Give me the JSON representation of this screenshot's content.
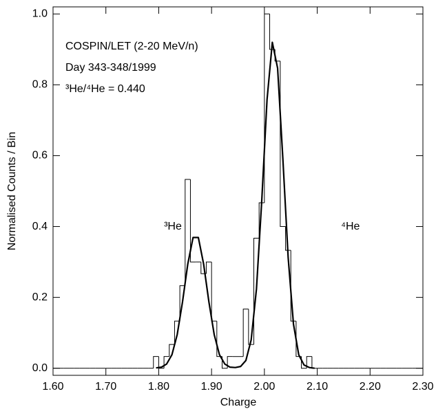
{
  "chart_data": {
    "type": "histogram",
    "xlabel": "Charge",
    "ylabel": "Normalised Counts / Bin",
    "annotations": [
      "COSPIN/LET (2-20 MeV/n)",
      "Day 343-348/1999",
      "³He/⁴He = 0.440"
    ],
    "peak_labels": [
      {
        "text": "³He",
        "x": 1.81,
        "y": 0.4
      },
      {
        "text": "⁴He",
        "x": 2.145,
        "y": 0.4
      }
    ],
    "color": "#000000",
    "bins": [
      1.6,
      1.61,
      1.62,
      1.63,
      1.64,
      1.65,
      1.66,
      1.67,
      1.68,
      1.69,
      1.7,
      1.71,
      1.72,
      1.73,
      1.74,
      1.75,
      1.76,
      1.77,
      1.78,
      1.79,
      1.8,
      1.81,
      1.82,
      1.83,
      1.84,
      1.85,
      1.86,
      1.87,
      1.88,
      1.89,
      1.9,
      1.91,
      1.92,
      1.93,
      1.94,
      1.95,
      1.96,
      1.97,
      1.98,
      1.99,
      2.0,
      2.01,
      2.02,
      2.03,
      2.04,
      2.05,
      2.06,
      2.07,
      2.08,
      2.09,
      2.1,
      2.11,
      2.12,
      2.13,
      2.14,
      2.15,
      2.16,
      2.17,
      2.18,
      2.19,
      2.2,
      2.21,
      2.22,
      2.23,
      2.24,
      2.25,
      2.26,
      2.27,
      2.28,
      2.29,
      2.3
    ],
    "values": [
      0,
      0,
      0,
      0,
      0,
      0,
      0,
      0,
      0,
      0,
      0,
      0,
      0,
      0,
      0,
      0,
      0,
      0,
      0,
      0.033,
      0,
      0.033,
      0.067,
      0.133,
      0.233,
      0.533,
      0.3,
      0.3,
      0.267,
      0.3,
      0.133,
      0.033,
      0,
      0.033,
      0.033,
      0.033,
      0.167,
      0.067,
      0.367,
      0.467,
      1.0,
      0.9,
      0.867,
      0.4,
      0.333,
      0.133,
      0.033,
      0,
      0.033,
      0,
      0,
      0,
      0,
      0,
      0,
      0,
      0,
      0,
      0,
      0,
      0,
      0,
      0,
      0,
      0,
      0,
      0,
      0,
      0,
      0
    ],
    "fit": {
      "type": "line",
      "color": "#000000",
      "x": [
        1.795,
        1.805,
        1.815,
        1.825,
        1.835,
        1.845,
        1.855,
        1.865,
        1.875,
        1.885,
        1.895,
        1.905,
        1.915,
        1.925,
        1.935,
        1.945,
        1.955,
        1.965,
        1.975,
        1.985,
        1.995,
        2.005,
        2.015,
        2.025,
        2.035,
        2.045,
        2.055,
        2.065,
        2.075,
        2.085,
        2.095
      ],
      "values": [
        0.001,
        0.003,
        0.012,
        0.038,
        0.095,
        0.187,
        0.294,
        0.369,
        0.369,
        0.294,
        0.187,
        0.095,
        0.038,
        0.012,
        0.003,
        0.002,
        0.005,
        0.022,
        0.08,
        0.224,
        0.473,
        0.758,
        0.92,
        0.847,
        0.59,
        0.312,
        0.125,
        0.038,
        0.009,
        0.002,
        0
      ]
    },
    "xlim": [
      1.6,
      2.3
    ],
    "ylim": [
      -0.02,
      1.02
    ],
    "xticks": [
      {
        "value": 1.6,
        "label": "1.60"
      },
      {
        "value": 1.7,
        "label": "1.70"
      },
      {
        "value": 1.8,
        "label": "1.80"
      },
      {
        "value": 1.9,
        "label": "1.90"
      },
      {
        "value": 2.0,
        "label": "2.00"
      },
      {
        "value": 2.1,
        "label": "2.10"
      },
      {
        "value": 2.2,
        "label": "2.20"
      },
      {
        "value": 2.3,
        "label": "2.30"
      }
    ],
    "yticks": [
      {
        "value": 0,
        "label": "0.0"
      },
      0.2,
      0.4,
      0.6,
      0.8,
      {
        "value": 1,
        "label": "1.0"
      }
    ]
  }
}
